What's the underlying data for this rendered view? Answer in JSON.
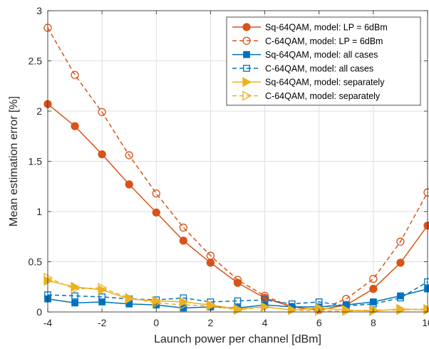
{
  "chart_data": {
    "type": "line",
    "xlabel": "Launch power per channel [dBm]",
    "ylabel": "Mean estimation error [%]",
    "xlim": [
      -4,
      10
    ],
    "ylim": [
      0,
      3
    ],
    "xticks": [
      -4,
      -2,
      0,
      2,
      4,
      6,
      8,
      10
    ],
    "xtick_labels": [
      "-4",
      "-2",
      "0",
      "2",
      "4",
      "6",
      "8",
      "10"
    ],
    "yticks": [
      0,
      0.5,
      1,
      1.5,
      2,
      2.5,
      3
    ],
    "ytick_labels": [
      "0",
      "0.5",
      "1",
      "1.5",
      "2",
      "2.5",
      "3"
    ],
    "grid": true,
    "legend_position": "top-right",
    "x": [
      -4,
      -3,
      -2,
      -1,
      0,
      1,
      2,
      3,
      4,
      5,
      6,
      7,
      8,
      9,
      10
    ],
    "series": [
      {
        "name": "Sq-64QAM, model: LP = 6dBm",
        "color": "#D95319",
        "line": "solid",
        "marker": "circle-filled",
        "values": [
          2.07,
          1.85,
          1.57,
          1.27,
          0.99,
          0.71,
          0.49,
          0.29,
          0.14,
          0.05,
          0.02,
          0.07,
          0.23,
          0.49,
          0.86
        ]
      },
      {
        "name": "C-64QAM, model: LP = 6dBm",
        "color": "#D95319",
        "line": "dashed",
        "marker": "circle-open",
        "values": [
          2.83,
          2.36,
          1.99,
          1.56,
          1.18,
          0.84,
          0.56,
          0.32,
          0.16,
          0.05,
          0.02,
          0.13,
          0.33,
          0.7,
          1.19
        ]
      },
      {
        "name": "Sq-64QAM, model: all cases",
        "color": "#0072BD",
        "line": "solid",
        "marker": "square-filled",
        "values": [
          0.13,
          0.09,
          0.1,
          0.08,
          0.07,
          0.04,
          0.05,
          0.04,
          0.07,
          0.05,
          0.05,
          0.07,
          0.1,
          0.16,
          0.23
        ]
      },
      {
        "name": "C-64QAM, model: all cases",
        "color": "#0072BD",
        "line": "dashed",
        "marker": "square-open",
        "values": [
          0.17,
          0.16,
          0.15,
          0.13,
          0.12,
          0.14,
          0.1,
          0.11,
          0.12,
          0.08,
          0.1,
          0.06,
          0.08,
          0.14,
          0.3
        ]
      },
      {
        "name": "Sq-64QAM, model: separately",
        "color": "#EDB120",
        "line": "solid",
        "marker": "triangle-right-filled",
        "values": [
          0.31,
          0.25,
          0.22,
          0.13,
          0.11,
          0.1,
          0.07,
          0.03,
          0.05,
          0.02,
          0.04,
          0.02,
          0.01,
          0.03,
          0.02
        ]
      },
      {
        "name": "C-64QAM, model: separately",
        "color": "#EDB120",
        "line": "dashed",
        "marker": "triangle-right-open",
        "values": [
          0.34,
          0.23,
          0.24,
          0.14,
          0.09,
          0.07,
          0.06,
          0.02,
          0.05,
          0.02,
          0.01,
          0.01,
          0.02,
          0.02,
          0.03
        ]
      }
    ]
  }
}
